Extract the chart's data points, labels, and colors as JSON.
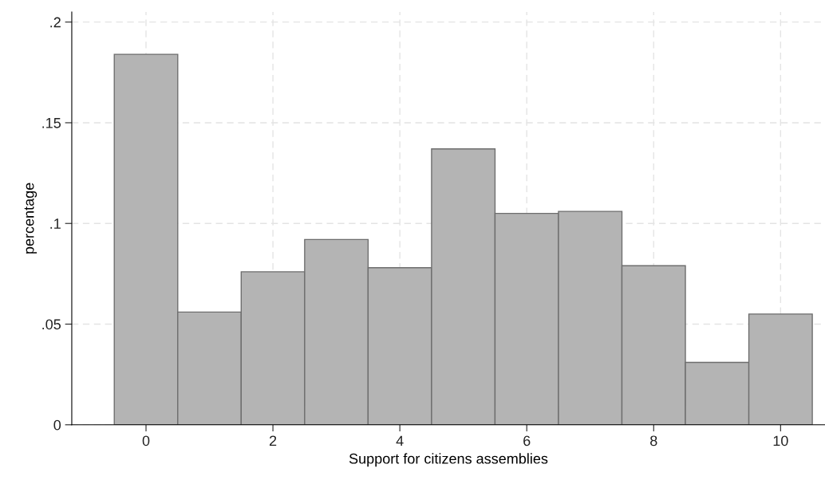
{
  "chart_data": {
    "type": "histogram",
    "xlabel": "Support for citizens assemblies",
    "ylabel": "percentage",
    "bins": [
      -0.5,
      0.5,
      1.5,
      2.5,
      3.5,
      4.5,
      5.5,
      6.5,
      7.5,
      8.5,
      9.5,
      10.5
    ],
    "values": [
      0.184,
      0.056,
      0.076,
      0.092,
      0.078,
      0.137,
      0.105,
      0.106,
      0.079,
      0.031,
      0.055
    ],
    "color": "#b4b4b4",
    "xlim": [
      -1.17,
      10.7
    ],
    "xticks": [
      0,
      2,
      4,
      6,
      8,
      10
    ],
    "ylim": [
      0,
      0.205
    ],
    "yticks": [
      {
        "value": 0,
        "label": "0"
      },
      {
        "value": 0.05,
        "label": ".05"
      },
      {
        "value": 0.1,
        "label": ".1"
      },
      {
        "value": 0.15,
        "label": ".15"
      },
      {
        "value": 0.2,
        "label": ".2"
      }
    ],
    "grid": true
  }
}
